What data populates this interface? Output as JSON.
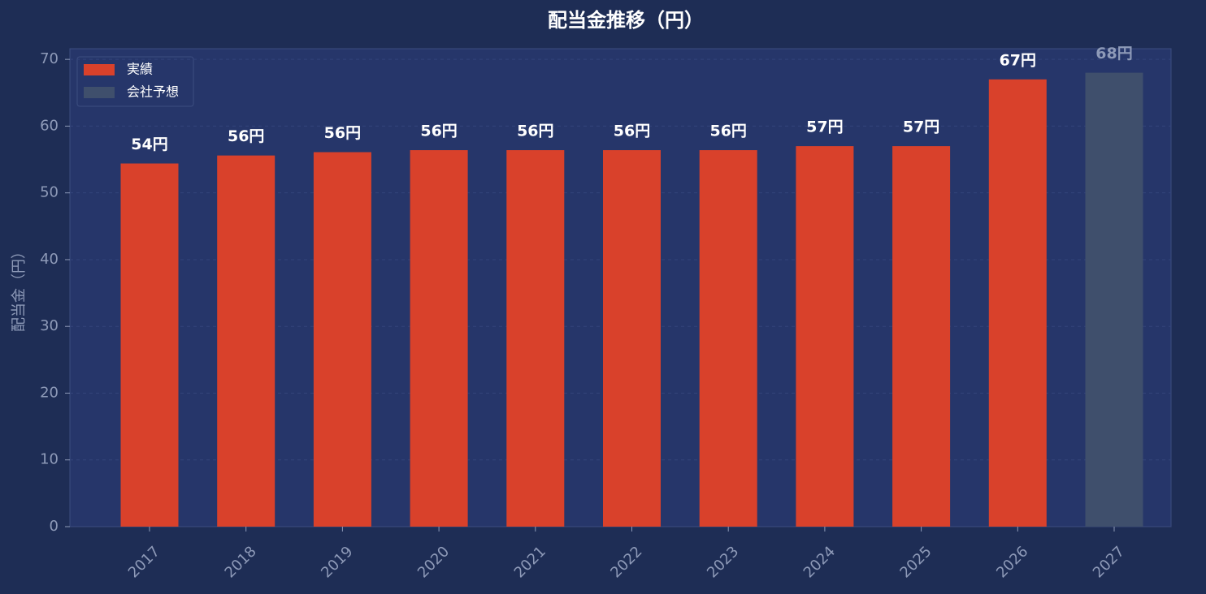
{
  "chart_data": {
    "type": "bar",
    "title": "配当金推移（円）",
    "y_label": "配当金（円）",
    "categories": [
      "2017",
      "2018",
      "2019",
      "2020",
      "2021",
      "2022",
      "2023",
      "2024",
      "2025",
      "2026",
      "2027"
    ],
    "series": [
      {
        "name": "実績",
        "color": "#d9412b",
        "values": [
          54.4,
          55.6,
          56.1,
          56.4,
          56.4,
          56.4,
          56.4,
          57,
          57,
          67,
          null
        ],
        "value_labels": [
          "54円",
          "56円",
          "56円",
          "56円",
          "56円",
          "56円",
          "56円",
          "57円",
          "57円",
          "67円",
          null
        ]
      },
      {
        "name": "会社予想",
        "color": "#3f4f6c",
        "values": [
          null,
          null,
          null,
          null,
          null,
          null,
          null,
          null,
          null,
          null,
          68
        ],
        "value_labels": [
          null,
          null,
          null,
          null,
          null,
          null,
          null,
          null,
          null,
          null,
          "68円"
        ]
      }
    ],
    "ylim": [
      0,
      71.6
    ],
    "yticks": [
      0,
      10,
      20,
      30,
      40,
      50,
      60,
      70
    ],
    "grid": true,
    "legend": "upper left"
  }
}
